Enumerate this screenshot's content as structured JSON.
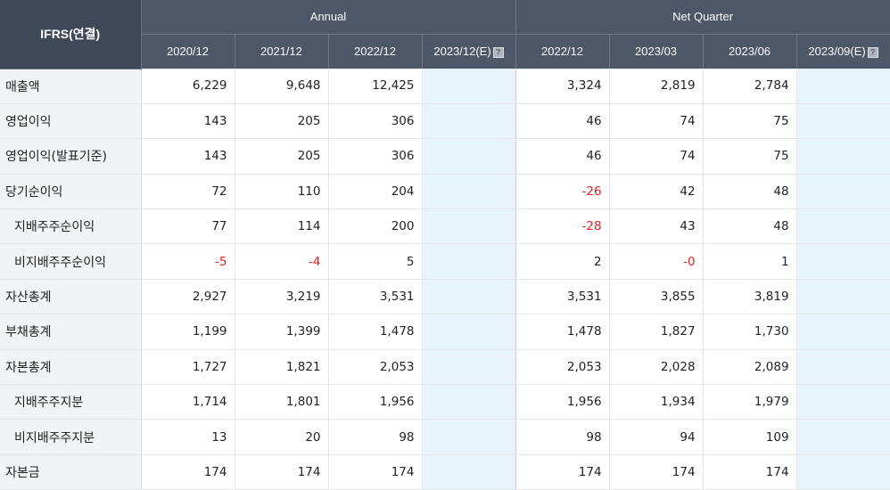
{
  "header": {
    "corner_label": "IFRS(연결)",
    "annual_label": "Annual",
    "quarter_label": "Net Quarter",
    "annual_periods": [
      "2020/12",
      "2021/12",
      "2022/12",
      "2023/12(E)"
    ],
    "quarter_periods": [
      "2022/12",
      "2023/03",
      "2023/06",
      "2023/09(E)"
    ],
    "help_icon": "?"
  },
  "rows": [
    {
      "label": "매출액",
      "sub": false,
      "annual": [
        "6,229",
        "9,648",
        "12,425",
        ""
      ],
      "quarter": [
        "3,324",
        "2,819",
        "2,784",
        ""
      ]
    },
    {
      "label": "영업이익",
      "sub": false,
      "annual": [
        "143",
        "205",
        "306",
        ""
      ],
      "quarter": [
        "46",
        "74",
        "75",
        ""
      ]
    },
    {
      "label": "영업이익(발표기준)",
      "sub": false,
      "annual": [
        "143",
        "205",
        "306",
        ""
      ],
      "quarter": [
        "46",
        "74",
        "75",
        ""
      ]
    },
    {
      "label": "당기순이익",
      "sub": false,
      "annual": [
        "72",
        "110",
        "204",
        ""
      ],
      "quarter": [
        "-26",
        "42",
        "48",
        ""
      ]
    },
    {
      "label": "지배주주순이익",
      "sub": true,
      "annual": [
        "77",
        "114",
        "200",
        ""
      ],
      "quarter": [
        "-28",
        "43",
        "48",
        ""
      ]
    },
    {
      "label": "비지배주주순이익",
      "sub": true,
      "annual": [
        "-5",
        "-4",
        "5",
        ""
      ],
      "quarter": [
        "2",
        "-0",
        "1",
        ""
      ]
    },
    {
      "label": "자산총계",
      "sub": false,
      "annual": [
        "2,927",
        "3,219",
        "3,531",
        ""
      ],
      "quarter": [
        "3,531",
        "3,855",
        "3,819",
        ""
      ]
    },
    {
      "label": "부채총계",
      "sub": false,
      "annual": [
        "1,199",
        "1,399",
        "1,478",
        ""
      ],
      "quarter": [
        "1,478",
        "1,827",
        "1,730",
        ""
      ]
    },
    {
      "label": "자본총계",
      "sub": false,
      "annual": [
        "1,727",
        "1,821",
        "2,053",
        ""
      ],
      "quarter": [
        "2,053",
        "2,028",
        "2,089",
        ""
      ]
    },
    {
      "label": "지배주주지분",
      "sub": true,
      "annual": [
        "1,714",
        "1,801",
        "1,956",
        ""
      ],
      "quarter": [
        "1,956",
        "1,934",
        "1,979",
        ""
      ]
    },
    {
      "label": "비지배주주지분",
      "sub": true,
      "annual": [
        "13",
        "20",
        "98",
        ""
      ],
      "quarter": [
        "98",
        "94",
        "109",
        ""
      ]
    },
    {
      "label": "자본금",
      "sub": false,
      "annual": [
        "174",
        "174",
        "174",
        ""
      ],
      "quarter": [
        "174",
        "174",
        "174",
        ""
      ]
    }
  ],
  "colors": {
    "negative": "#e51e1e",
    "header_bg": "#4d5767",
    "estimate_bg": "#e8f4fb",
    "label_bg": "#f1f3f7"
  }
}
